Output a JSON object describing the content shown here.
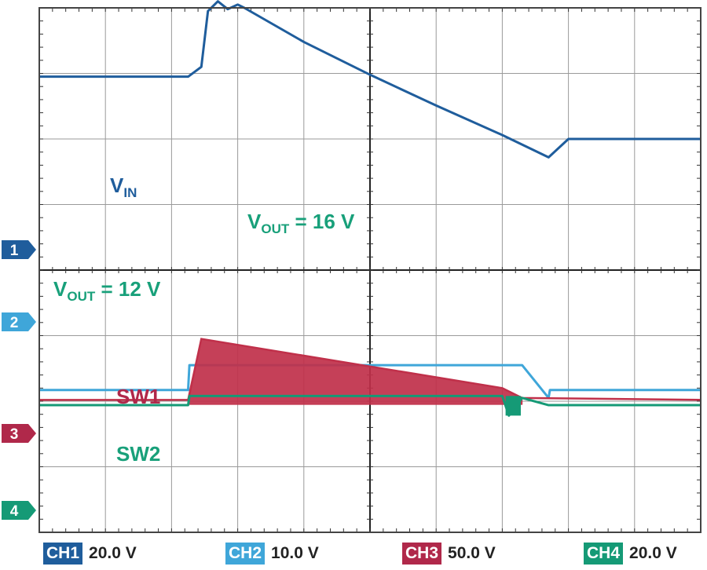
{
  "chart_data": {
    "type": "line",
    "title": "",
    "xlabel": "",
    "ylabel": "",
    "divisions": {
      "x": 10,
      "y": 8
    },
    "grid": true,
    "xlim": [
      0,
      10
    ],
    "ylim": [
      0,
      8
    ],
    "series": [
      {
        "name": "VIN",
        "channel": "CH1",
        "color": "#1f5d9c",
        "x": [
          0,
          2.25,
          2.45,
          2.55,
          2.7,
          2.85,
          3.0,
          3.1,
          4.0,
          5.0,
          6.0,
          7.0,
          7.7,
          8.0,
          10.0
        ],
        "y": [
          6.95,
          6.95,
          7.1,
          7.95,
          8.1,
          7.98,
          8.05,
          8.0,
          7.48,
          6.98,
          6.51,
          6.06,
          5.72,
          6.0,
          6.0
        ]
      },
      {
        "name": "VOUT",
        "channel": "CH2",
        "color": "#3fa6d9",
        "x": [
          0,
          2.25,
          2.27,
          7.3,
          7.7,
          7.72,
          10.0
        ],
        "y": [
          2.17,
          2.17,
          2.55,
          2.55,
          2.05,
          2.17,
          2.17
        ],
        "annotations": [
          "VOUT = 16 V",
          "VOUT = 12 V"
        ]
      },
      {
        "name": "SW1",
        "channel": "CH3",
        "color": "#c0304a",
        "x": [
          0,
          2.25,
          2.45,
          7.0,
          7.3,
          10.0
        ],
        "y": [
          2.02,
          2.02,
          2.95,
          2.2,
          2.05,
          2.02
        ]
      },
      {
        "name": "SW2",
        "channel": "CH4",
        "color": "#159a76",
        "x": [
          0,
          2.25,
          2.27,
          7.0,
          7.1,
          7.3,
          7.7,
          10.0
        ],
        "y": [
          1.94,
          1.94,
          2.08,
          2.08,
          1.78,
          2.05,
          1.94,
          1.94
        ]
      }
    ]
  },
  "trace_labels": {
    "vin": {
      "main": "V",
      "sub": "IN"
    },
    "vout16": {
      "main": "V",
      "sub": "OUT",
      "rest": " = 16 V"
    },
    "vout12": {
      "main": "V",
      "sub": "OUT",
      "rest": " = 12 V"
    },
    "sw1": "SW1",
    "sw2": "SW2"
  },
  "markers": [
    {
      "label": "1",
      "color": "#1f5d9c"
    },
    {
      "label": "2",
      "color": "#3fa6d9"
    },
    {
      "label": "3",
      "color": "#b0284a"
    },
    {
      "label": "4",
      "color": "#159a76"
    }
  ],
  "status": [
    {
      "tag": "CH1",
      "scale": "20.0 V",
      "color": "#1f5d9c"
    },
    {
      "tag": "CH2",
      "scale": "10.0 V",
      "color": "#3fa6d9"
    },
    {
      "tag": "CH3",
      "scale": "50.0 V",
      "color": "#b0284a"
    },
    {
      "tag": "CH4",
      "scale": "20.0 V",
      "color": "#159a76"
    }
  ]
}
